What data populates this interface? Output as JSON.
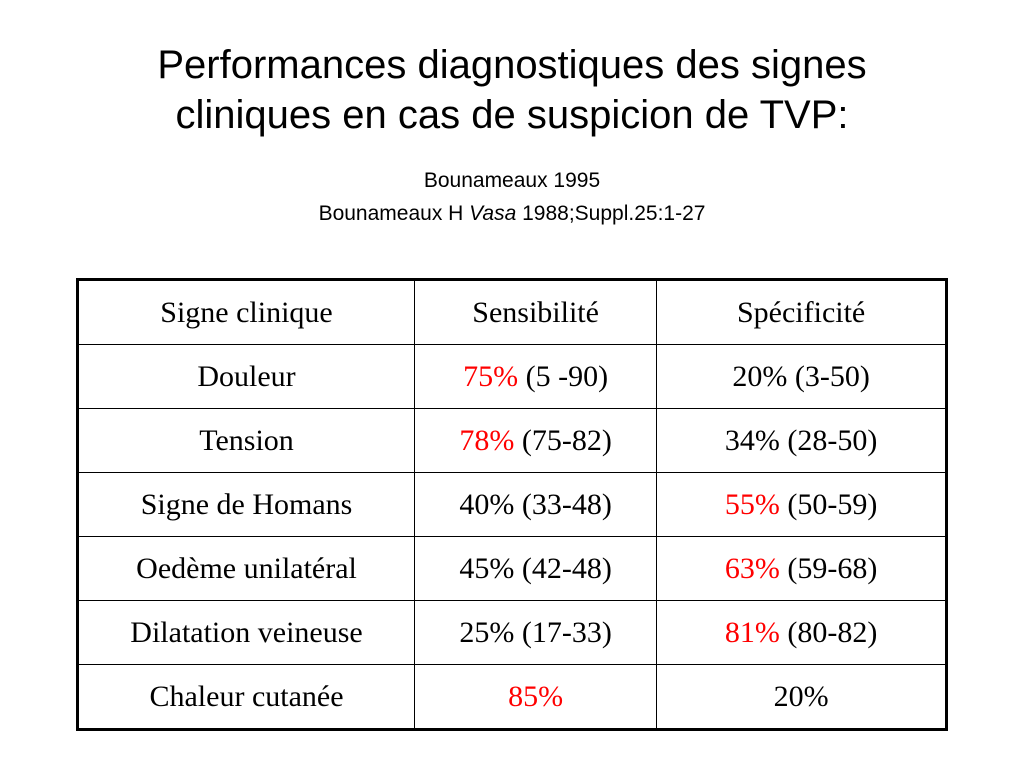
{
  "title": {
    "line1": "Performances diagnostiques des signes",
    "line2": "cliniques en cas de suspicion de TVP:"
  },
  "source": {
    "line1": "Bounameaux 1995",
    "author": "Bounameaux H",
    "journal": "Vasa",
    "ref": "1988;Suppl.25:1-27"
  },
  "colors": {
    "highlight": "#ff0000",
    "text": "#000000",
    "background": "#ffffff"
  },
  "table": {
    "headers": [
      "Signe clinique",
      "Sensibilité",
      "Spécificité"
    ],
    "rows": [
      {
        "sign": "Douleur",
        "sens_value": "75%",
        "sens_range": "(5 -90)",
        "sens_highlight": true,
        "spec_value": "20%",
        "spec_range": "(3-50)",
        "spec_highlight": false
      },
      {
        "sign": "Tension",
        "sens_value": "78%",
        "sens_range": "(75-82)",
        "sens_highlight": true,
        "spec_value": "34%",
        "spec_range": "(28-50)",
        "spec_highlight": false
      },
      {
        "sign": "Signe de Homans",
        "sens_value": "40%",
        "sens_range": "(33-48)",
        "sens_highlight": false,
        "spec_value": "55%",
        "spec_range": "(50-59)",
        "spec_highlight": true
      },
      {
        "sign": "Oedème unilatéral",
        "sens_value": "45%",
        "sens_range": "(42-48)",
        "sens_highlight": false,
        "spec_value": "63%",
        "spec_range": "(59-68)",
        "spec_highlight": true
      },
      {
        "sign": "Dilatation veineuse",
        "sens_value": "25%",
        "sens_range": "(17-33)",
        "sens_highlight": false,
        "spec_value": "81%",
        "spec_range": "(80-82)",
        "spec_highlight": true
      },
      {
        "sign": "Chaleur cutanée",
        "sens_value": "85%",
        "sens_range": "",
        "sens_highlight": true,
        "spec_value": "20%",
        "spec_range": "",
        "spec_highlight": false
      }
    ]
  }
}
